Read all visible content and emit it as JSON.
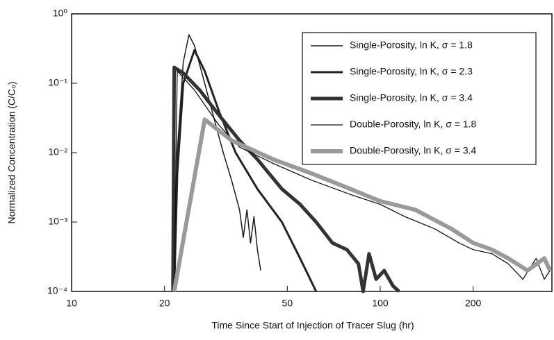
{
  "chart_data": {
    "type": "line",
    "xlabel": "Time Since Start of Injection of Tracer Slug (hr)",
    "ylabel": "Normalized Concentration (C/C₀)",
    "xscale": "log",
    "yscale": "log",
    "xlim": [
      10,
      360
    ],
    "ylim": [
      0.0001,
      1
    ],
    "xticks": [
      10,
      20,
      50,
      100,
      200
    ],
    "yticks": [
      {
        "value": 0.0001,
        "label": "10⁻⁴"
      },
      {
        "value": 0.001,
        "label": "10⁻³"
      },
      {
        "value": 0.01,
        "label": "10⁻²"
      },
      {
        "value": 0.1,
        "label": "10⁻¹"
      },
      {
        "value": 1,
        "label": "10⁰"
      }
    ],
    "legend": "upper right",
    "series": [
      {
        "name": "Single-Porosity, ln K, σ = 1.8",
        "color": "#1a1a1a",
        "line_width": 1.5,
        "x": [
          21.5,
          22,
          23,
          24,
          25,
          27,
          29,
          31,
          33,
          35,
          36,
          37,
          38,
          39,
          40,
          41
        ],
        "values": [
          0.0001,
          0.01,
          0.2,
          0.5,
          0.35,
          0.1,
          0.03,
          0.01,
          0.004,
          0.0015,
          0.0006,
          0.0015,
          0.0005,
          0.0012,
          0.0004,
          0.0002
        ]
      },
      {
        "name": "Single-Porosity, ln K, σ = 2.3",
        "color": "#222222",
        "line_width": 3,
        "x": [
          21.5,
          22,
          23,
          25,
          27,
          30,
          34,
          40,
          48,
          55,
          62
        ],
        "values": [
          0.0001,
          0.005,
          0.1,
          0.3,
          0.15,
          0.04,
          0.01,
          0.003,
          0.001,
          0.0003,
          0.0001
        ]
      },
      {
        "name": "Single-Porosity, ln K, σ = 3.4",
        "color": "#333333",
        "line_width": 5,
        "x": [
          21.3,
          21.5,
          23,
          26,
          30,
          35,
          40,
          48,
          55,
          62,
          70,
          78,
          85,
          88,
          92,
          97,
          103,
          110,
          115
        ],
        "values": [
          0.0001,
          0.17,
          0.14,
          0.08,
          0.035,
          0.015,
          0.008,
          0.003,
          0.0018,
          0.001,
          0.0005,
          0.0004,
          0.00025,
          0.0001,
          0.00035,
          0.00015,
          0.0002,
          0.00012,
          0.0001
        ]
      },
      {
        "name": "Double-Porosity, ln K, σ = 1.8",
        "color": "#111111",
        "line_width": 1.3,
        "x": [
          21.5,
          22,
          25,
          30,
          35,
          45,
          60,
          80,
          100,
          120,
          150,
          180,
          200,
          230,
          260,
          290,
          320,
          340,
          355
        ],
        "values": [
          0.0001,
          0.15,
          0.08,
          0.025,
          0.012,
          0.007,
          0.004,
          0.0025,
          0.0018,
          0.0012,
          0.0008,
          0.0005,
          0.0004,
          0.00035,
          0.00025,
          0.00015,
          0.0003,
          0.00015,
          0.0002
        ]
      },
      {
        "name": "Double-Porosity, ln K, σ = 3.4",
        "color": "#9a9a9a",
        "line_width": 6,
        "x": [
          21.5,
          27,
          33,
          45,
          60,
          80,
          100,
          130,
          170,
          200,
          230,
          260,
          300,
          340,
          355
        ],
        "values": [
          0.0001,
          0.03,
          0.015,
          0.008,
          0.005,
          0.003,
          0.002,
          0.0015,
          0.0008,
          0.0005,
          0.0004,
          0.0003,
          0.0002,
          0.0003,
          0.0002
        ]
      }
    ]
  }
}
